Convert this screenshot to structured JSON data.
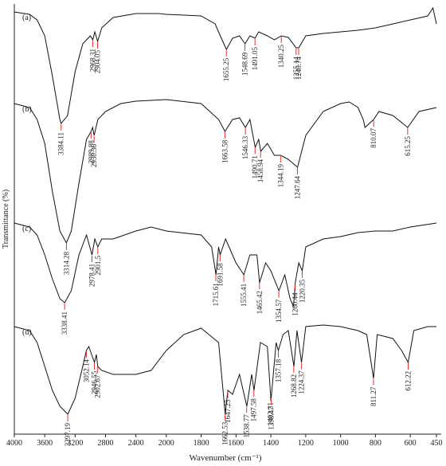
{
  "chart_data": {
    "type": "line",
    "xlabel": "Wavenumber (cm⁻¹)",
    "ylabel": "Transmittance (%)",
    "xlim": [
      4000,
      450
    ],
    "xticks": [
      4000,
      3600,
      3200,
      2800,
      2400,
      2000,
      1800,
      1600,
      1400,
      1200,
      1000,
      800,
      600,
      450
    ],
    "ylim": [
      0,
      540
    ],
    "peak_color": "#e03030",
    "series": [
      {
        "name": "(a)",
        "color": "#111111",
        "x": [
          4000,
          3800,
          3700,
          3600,
          3500,
          3400,
          3384,
          3300,
          3200,
          3100,
          3000,
          2968,
          2940,
          2904,
          2850,
          2700,
          2400,
          2100,
          2000,
          1800,
          1720,
          1680,
          1655,
          1620,
          1580,
          1548,
          1520,
          1491,
          1470,
          1420,
          1380,
          1340,
          1300,
          1255,
          1240,
          1200,
          1100,
          1000,
          900,
          800,
          700,
          600,
          500,
          470,
          450
        ],
        "values": [
          530,
          527,
          520,
          500,
          450,
          395,
          390,
          400,
          455,
          490,
          500,
          495,
          505,
          493,
          510,
          523,
          528,
          528,
          527,
          525,
          515,
          495,
          483,
          497,
          500,
          490,
          500,
          497,
          505,
          500,
          495,
          500,
          498,
          485,
          485,
          500,
          503,
          505,
          507,
          510,
          515,
          520,
          525,
          535,
          515
        ],
        "peaks": [
          3384.11,
          2968.31,
          2904.05,
          1655.25,
          1548.69,
          1491.05,
          1340.25,
          1255.14,
          1240.74
        ]
      },
      {
        "name": "(b)",
        "color": "#111111",
        "x": [
          4000,
          3800,
          3700,
          3600,
          3500,
          3400,
          3314,
          3250,
          3150,
          3050,
          2989,
          2970,
          2950,
          2900,
          2800,
          2600,
          2400,
          2000,
          1800,
          1700,
          1663,
          1620,
          1580,
          1546,
          1520,
          1490,
          1470,
          1458,
          1420,
          1380,
          1344,
          1300,
          1247,
          1200,
          1100,
          1000,
          950,
          900,
          870,
          860,
          810,
          780,
          700,
          615,
          550,
          450
        ],
        "values": [
          415,
          410,
          395,
          365,
          305,
          255,
          240,
          255,
          315,
          370,
          380,
          385,
          375,
          395,
          405,
          415,
          418,
          420,
          415,
          395,
          380,
          395,
          397,
          385,
          395,
          360,
          370,
          355,
          365,
          350,
          350,
          345,
          335,
          375,
          405,
          415,
          417,
          410,
          395,
          385,
          395,
          405,
          400,
          385,
          405,
          410
        ],
        "peaks": [
          3314.28,
          2989.88,
          2950.36,
          1663.58,
          1546.33,
          1490.71,
          1458.94,
          1344.19,
          1247.64,
          810.07,
          615.25
        ]
      },
      {
        "name": "(c)",
        "color": "#111111",
        "x": [
          4000,
          3800,
          3700,
          3600,
          3500,
          3400,
          3338,
          3250,
          3150,
          3050,
          2978,
          2940,
          2901,
          2850,
          2700,
          2400,
          2200,
          2000,
          1800,
          1740,
          1715,
          1700,
          1691,
          1660,
          1600,
          1555,
          1520,
          1480,
          1465,
          1430,
          1400,
          1354,
          1320,
          1290,
          1270,
          1260,
          1240,
          1220,
          1200,
          1100,
          1000,
          900,
          800,
          700,
          600,
          450
        ],
        "values": [
          265,
          260,
          250,
          225,
          195,
          170,
          165,
          180,
          225,
          250,
          225,
          245,
          235,
          245,
          245,
          255,
          260,
          255,
          250,
          235,
          200,
          235,
          225,
          245,
          215,
          200,
          225,
          225,
          190,
          215,
          205,
          180,
          200,
          170,
          160,
          190,
          215,
          205,
          235,
          245,
          248,
          253,
          255,
          255,
          260,
          265
        ],
        "peaks": [
          3338.41,
          2978.41,
          2901.5,
          1715.61,
          1691.58,
          1555.41,
          1465.42,
          1354.57,
          1260.44,
          1220.35
        ]
      },
      {
        "name": "(d)",
        "color": "#111111",
        "x": [
          4000,
          3800,
          3700,
          3600,
          3500,
          3400,
          3297,
          3200,
          3100,
          3052,
          3020,
          2946,
          2920,
          2902,
          2850,
          2700,
          2400,
          2200,
          2000,
          1900,
          1800,
          1700,
          1662,
          1647,
          1620,
          1580,
          1538,
          1510,
          1497,
          1460,
          1420,
          1402,
          1398,
          1370,
          1357,
          1330,
          1300,
          1268,
          1250,
          1224,
          1200,
          1100,
          1000,
          900,
          850,
          811,
          790,
          700,
          650,
          612,
          580,
          500,
          450
        ],
        "values": [
          135,
          130,
          115,
          85,
          55,
          35,
          25,
          45,
          85,
          105,
          110,
          90,
          100,
          85,
          80,
          75,
          75,
          80,
          105,
          125,
          133,
          115,
          25,
          55,
          50,
          75,
          35,
          75,
          55,
          115,
          110,
          50,
          45,
          115,
          105,
          125,
          130,
          85,
          130,
          90,
          135,
          137,
          135,
          130,
          125,
          70,
          125,
          120,
          105,
          90,
          130,
          135,
          135
        ],
        "peaks": [
          3297.19,
          3052.14,
          2946.55,
          2902.67,
          1662.53,
          1647.25,
          1538.77,
          1497.58,
          1402.31,
          1398.47,
          1357.18,
          1268.82,
          1224.37,
          811.27,
          612.22
        ]
      }
    ]
  }
}
